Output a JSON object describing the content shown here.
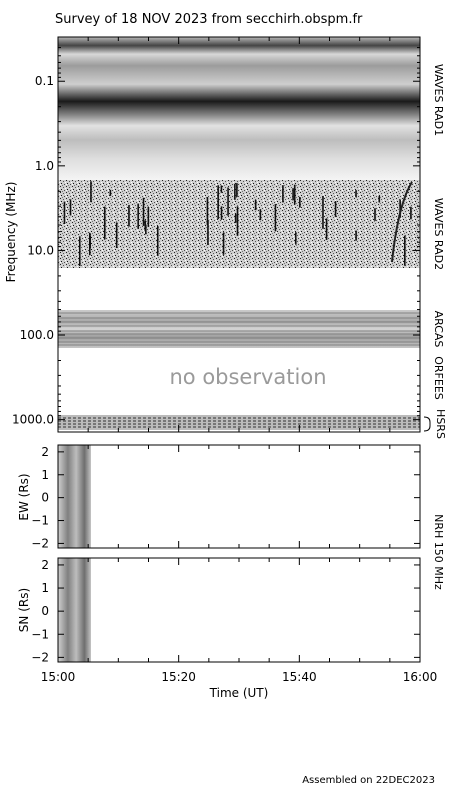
{
  "title": "Survey of 18 NOV 2023 from secchirh.obspm.fr",
  "footer": "Assembled on 22DEC2023",
  "colors": {
    "background": "#ffffff",
    "axis": "#000000",
    "no_observation_text": "#9a9a9a"
  },
  "chart_data": [
    {
      "type": "heatmap",
      "name": "frequency-time spectrogram",
      "yscale": "log",
      "ylabel": "Frequency (MHz)",
      "yreversed": true,
      "ylim": [
        0.03,
        1400
      ],
      "yticks": [
        {
          "value": 0.1,
          "label": "0.1"
        },
        {
          "value": 1,
          "label": "1.0"
        },
        {
          "value": 10,
          "label": "10.0"
        },
        {
          "value": 100,
          "label": "100.0"
        },
        {
          "value": 1000,
          "label": "1000.0"
        }
      ],
      "x_start": "15:00",
      "x_end": "16:00",
      "bands": [
        {
          "instrument": "WAVES RAD1",
          "freq_range_mhz": [
            0.03,
            1.0
          ]
        },
        {
          "instrument": "WAVES RAD2",
          "freq_range_mhz": [
            1.0,
            13.8
          ]
        },
        {
          "instrument": "ARCAS",
          "freq_range_mhz": [
            40,
            150
          ]
        },
        {
          "instrument": "ORFEES",
          "freq_range_mhz": [
            150,
            1000
          ],
          "note": "no observation"
        },
        {
          "instrument": "HSRS",
          "freq_range_mhz": [
            1000,
            1400
          ]
        }
      ]
    },
    {
      "type": "heatmap",
      "name": "NRH EW position",
      "ylabel": "EW (Rs)",
      "ylim": [
        -2.2,
        2.3
      ],
      "yticks": [
        -2,
        -1,
        0,
        1,
        2
      ],
      "data_time_range": [
        "15:00",
        "15:05"
      ]
    },
    {
      "type": "heatmap",
      "name": "NRH SN position",
      "ylabel": "SN (Rs)",
      "ylim": [
        -2.2,
        2.3
      ],
      "yticks": [
        -2,
        -1,
        0,
        1,
        2
      ],
      "data_time_range": [
        "15:00",
        "15:05"
      ],
      "instrument": "NRH 150 MHz"
    }
  ],
  "x_axis": {
    "label": "Time (UT)",
    "ticks": [
      {
        "value": "15:00",
        "label": "15:00"
      },
      {
        "value": "15:20",
        "label": "15:20"
      },
      {
        "value": "15:40",
        "label": "15:40"
      },
      {
        "value": "16:00",
        "label": "16:00"
      }
    ]
  },
  "right_labels": {
    "rad1": "WAVES RAD1",
    "rad2": "WAVES RAD2",
    "arcas": "ARCAS",
    "orfees": "ORFEES",
    "hsrs": "HSRS",
    "nrh": "NRH 150 MHz"
  },
  "orfees_note": "no observation"
}
